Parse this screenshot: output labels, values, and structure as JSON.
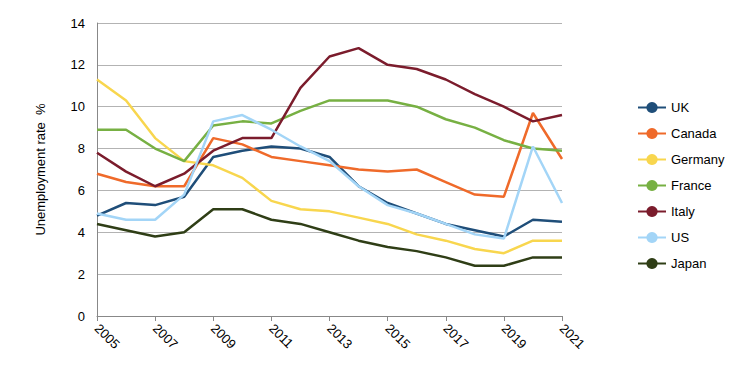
{
  "chart_data": {
    "type": "line",
    "y_label": "Unemployment rate  %",
    "x": [
      2005,
      2006,
      2007,
      2008,
      2009,
      2010,
      2011,
      2012,
      2013,
      2014,
      2015,
      2016,
      2017,
      2018,
      2019,
      2020,
      2021
    ],
    "xlim": [
      2005,
      2021
    ],
    "xticks": [
      2005,
      2007,
      2009,
      2011,
      2013,
      2015,
      2017,
      2019,
      2021
    ],
    "ylim": [
      0,
      14
    ],
    "yticks": [
      0,
      2,
      4,
      6,
      8,
      10,
      12,
      14
    ],
    "grid": true,
    "legend": "right",
    "series": [
      {
        "name": "UK",
        "color": "#1f4e79",
        "values": [
          4.8,
          5.4,
          5.3,
          5.7,
          7.6,
          7.9,
          8.1,
          8.0,
          7.6,
          6.2,
          5.4,
          4.9,
          4.4,
          4.1,
          3.8,
          4.6,
          4.5
        ]
      },
      {
        "name": "Canada",
        "color": "#ef6a2a",
        "values": [
          6.8,
          6.4,
          6.2,
          6.2,
          8.5,
          8.2,
          7.6,
          7.4,
          7.2,
          7.0,
          6.9,
          7.0,
          6.4,
          5.8,
          5.7,
          9.7,
          7.5
        ]
      },
      {
        "name": "Germany",
        "color": "#f8d64e",
        "values": [
          11.3,
          10.3,
          8.5,
          7.4,
          7.2,
          6.6,
          5.5,
          5.1,
          5.0,
          4.7,
          4.4,
          3.9,
          3.6,
          3.2,
          3.0,
          3.6,
          3.6
        ]
      },
      {
        "name": "France",
        "color": "#77b043",
        "values": [
          8.9,
          8.9,
          8.0,
          7.4,
          9.1,
          9.3,
          9.2,
          9.8,
          10.3,
          10.3,
          10.3,
          10.0,
          9.4,
          9.0,
          8.4,
          8.0,
          7.9
        ]
      },
      {
        "name": "Italy",
        "color": "#7b1c2c",
        "values": [
          7.8,
          6.9,
          6.2,
          6.8,
          7.9,
          8.5,
          8.5,
          10.9,
          12.4,
          12.8,
          12.0,
          11.8,
          11.3,
          10.6,
          10.0,
          9.3,
          9.6
        ]
      },
      {
        "name": "US",
        "color": "#a3d5f7",
        "values": [
          4.9,
          4.6,
          4.6,
          5.8,
          9.3,
          9.6,
          8.9,
          8.1,
          7.4,
          6.2,
          5.3,
          4.9,
          4.4,
          3.9,
          3.7,
          8.1,
          5.4
        ]
      },
      {
        "name": "Japan",
        "color": "#2f3e16",
        "values": [
          4.4,
          4.1,
          3.8,
          4.0,
          5.1,
          5.1,
          4.6,
          4.4,
          4.0,
          3.6,
          3.3,
          3.1,
          2.8,
          2.4,
          2.4,
          2.8,
          2.8
        ]
      }
    ]
  }
}
